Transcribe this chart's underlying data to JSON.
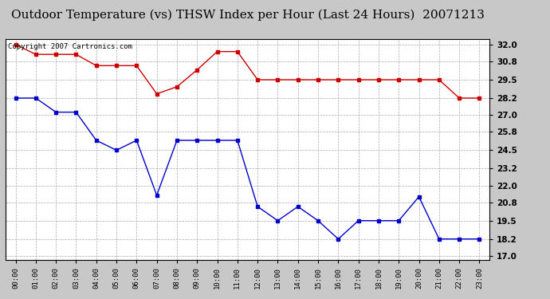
{
  "title": "Outdoor Temperature (vs) THSW Index per Hour (Last 24 Hours)  20071213",
  "copyright": "Copyright 2007 Cartronics.com",
  "hours": [
    "00:00",
    "01:00",
    "02:00",
    "03:00",
    "04:00",
    "05:00",
    "06:00",
    "07:00",
    "08:00",
    "09:00",
    "10:00",
    "11:00",
    "12:00",
    "13:00",
    "14:00",
    "15:00",
    "16:00",
    "17:00",
    "18:00",
    "19:00",
    "20:00",
    "21:00",
    "22:00",
    "23:00"
  ],
  "red_data": [
    32.0,
    31.3,
    31.3,
    31.3,
    30.5,
    30.5,
    30.5,
    28.5,
    29.0,
    30.2,
    31.5,
    31.5,
    29.5,
    29.5,
    29.5,
    29.5,
    29.5,
    29.5,
    29.5,
    29.5,
    29.5,
    29.5,
    28.2,
    28.2
  ],
  "blue_data": [
    28.2,
    28.2,
    27.2,
    27.2,
    25.2,
    24.5,
    25.2,
    21.3,
    25.2,
    25.2,
    25.2,
    25.2,
    20.5,
    19.5,
    20.5,
    19.5,
    18.2,
    19.5,
    19.5,
    19.5,
    21.2,
    18.2,
    18.2,
    18.2
  ],
  "yticks": [
    17.0,
    18.2,
    19.5,
    20.8,
    22.0,
    23.2,
    24.5,
    25.8,
    27.0,
    28.2,
    29.5,
    30.8,
    32.0
  ],
  "ymin": 16.7,
  "ymax": 32.4,
  "bg_color": "#c8c8c8",
  "plot_bg_color": "#ffffff",
  "red_color": "#cc0000",
  "blue_color": "#0000cc",
  "grid_color": "#aaaaaa",
  "title_fontsize": 11,
  "copyright_fontsize": 6.5
}
